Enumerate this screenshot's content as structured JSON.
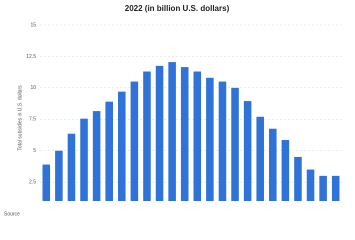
{
  "chart_data": {
    "type": "bar",
    "title": "2022 (in billion U.S. dollars)",
    "y_label": "Total subsidies in U.S. dollars",
    "source": "Source",
    "categories": [
      null,
      null,
      null,
      null,
      null,
      null,
      null,
      null,
      null,
      null,
      null,
      null,
      null,
      null,
      null,
      null,
      null,
      null,
      null,
      null,
      null,
      null,
      null,
      null
    ],
    "values": [
      3.9,
      5.0,
      6.35,
      7.55,
      8.15,
      8.9,
      9.7,
      10.5,
      11.3,
      11.75,
      12.05,
      11.65,
      11.3,
      10.8,
      10.5,
      10.0,
      8.95,
      7.7,
      6.75,
      5.85,
      4.5,
      3.5,
      3.0,
      3.0
    ],
    "color": "#2f72d8",
    "ylim": [
      1,
      15
    ],
    "yticks": [
      2.5,
      5,
      7.5,
      10,
      12.5,
      15
    ],
    "grid": true
  }
}
